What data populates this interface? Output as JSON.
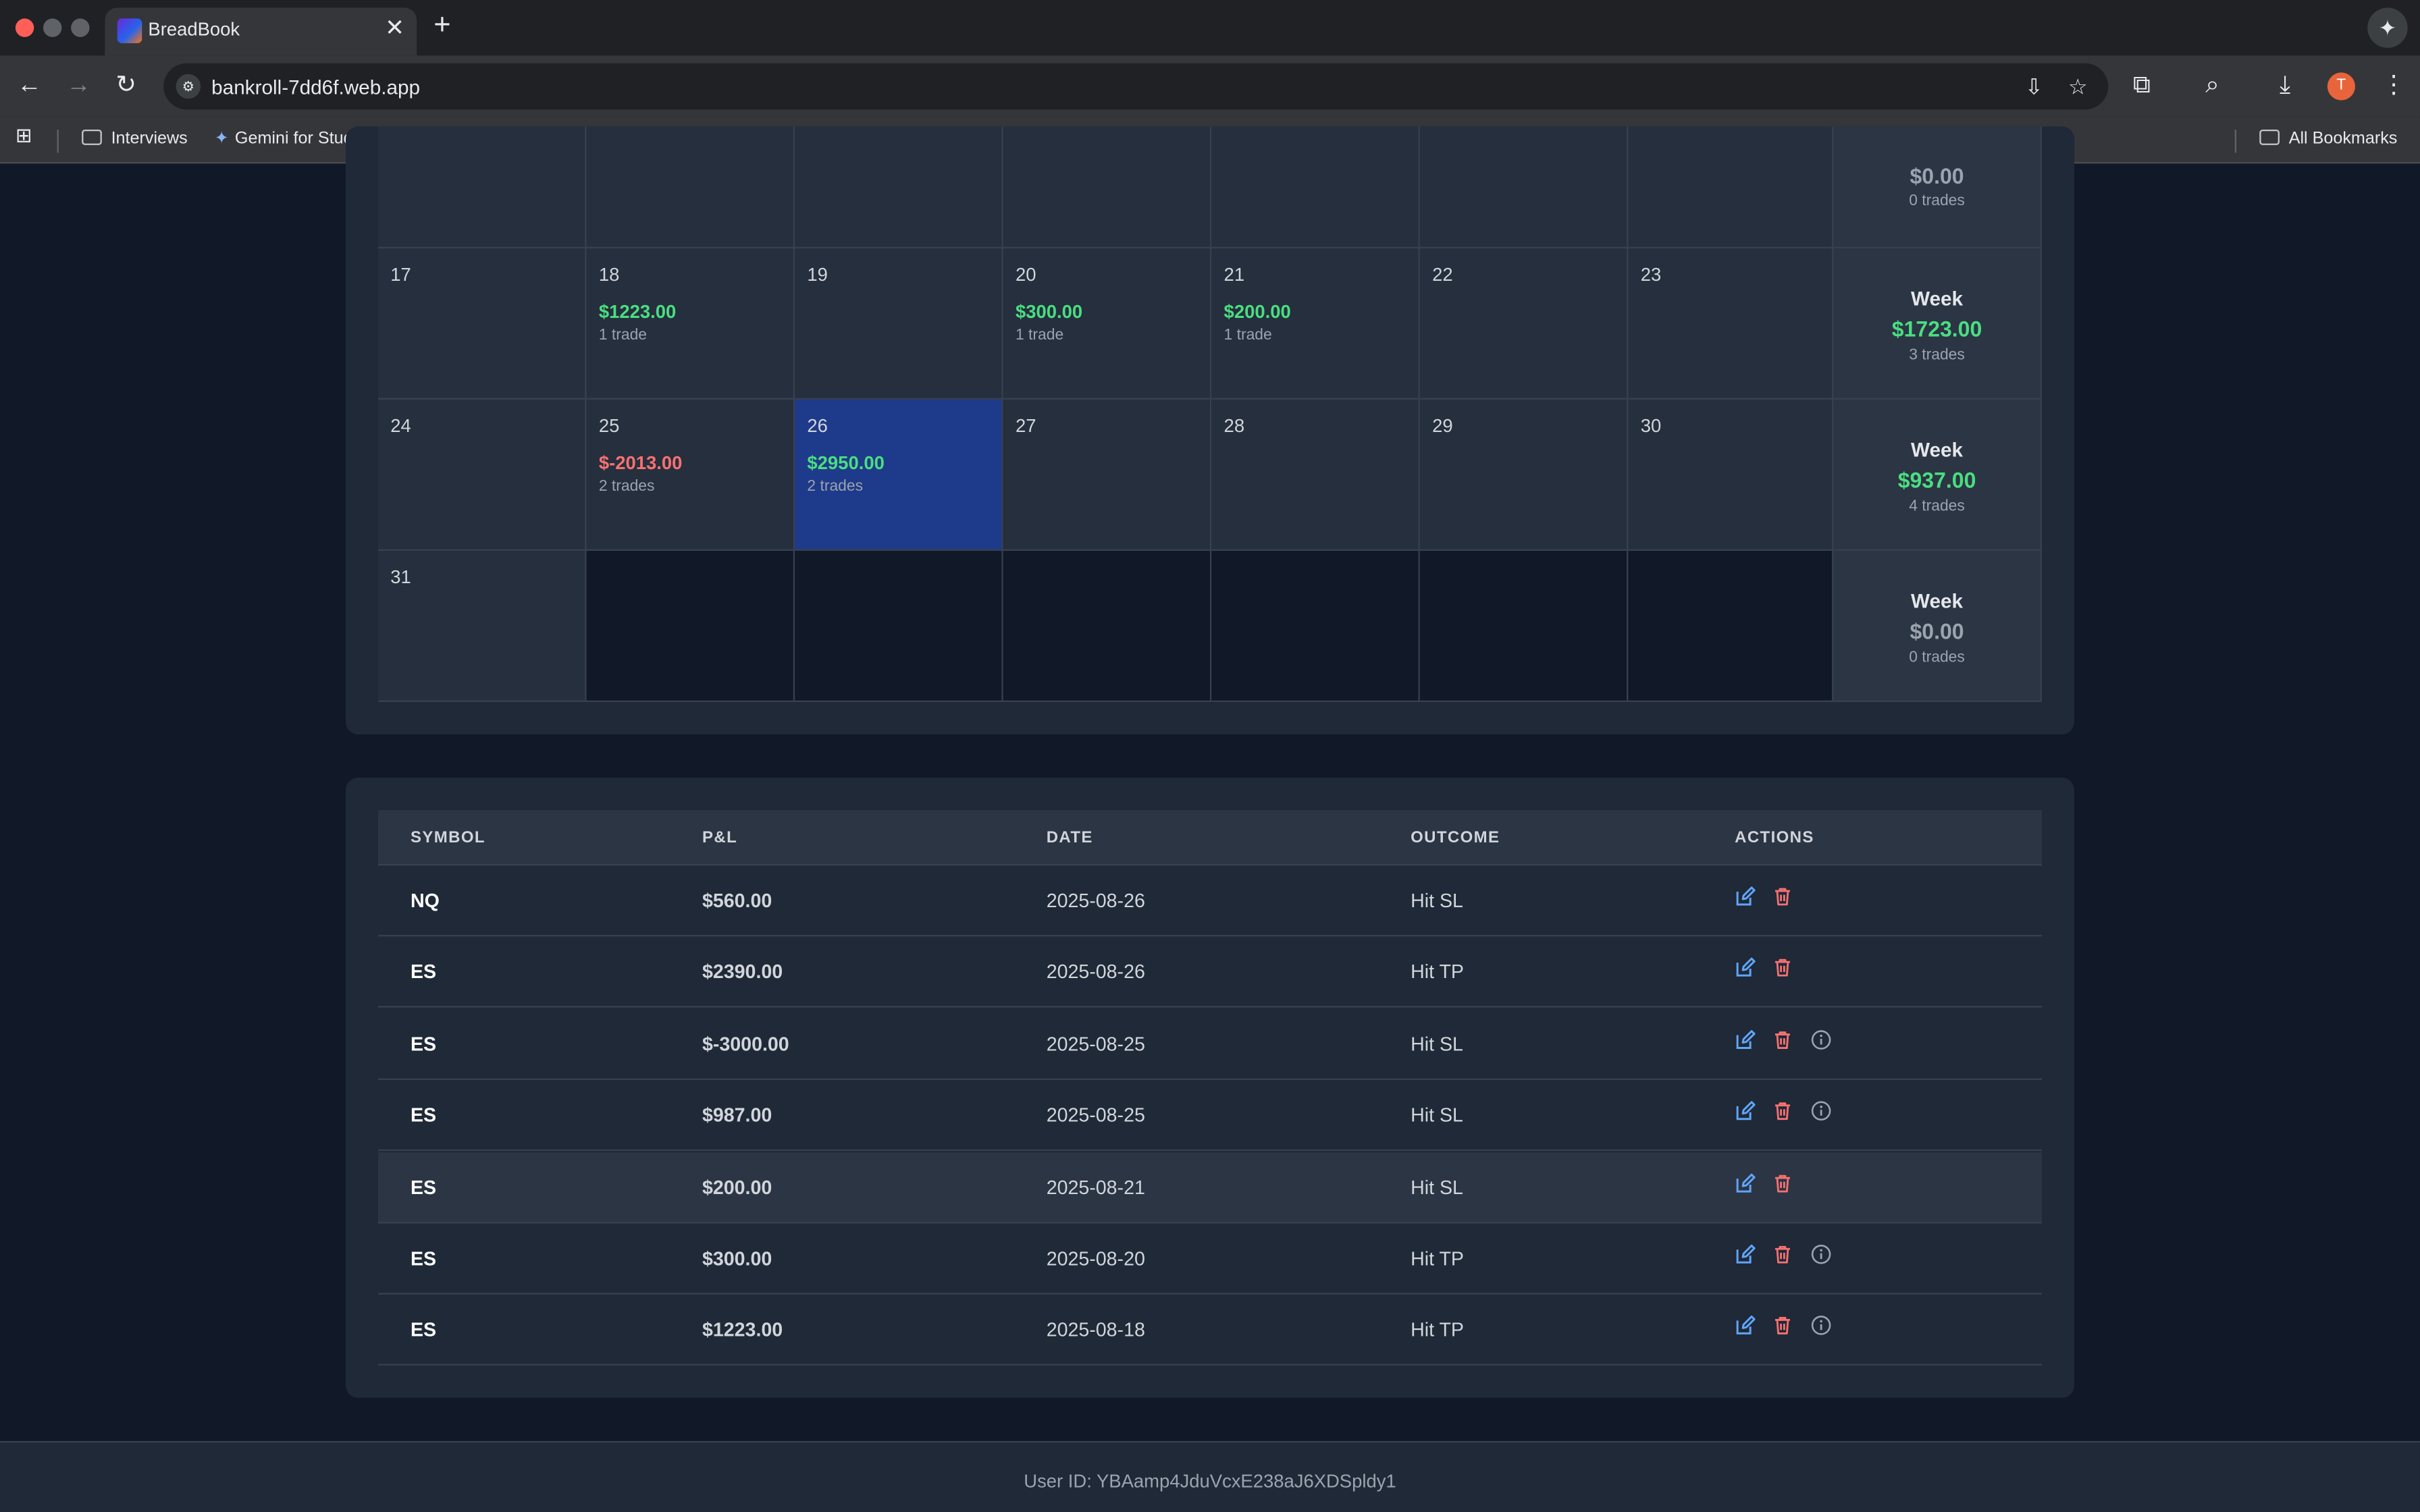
{
  "browser": {
    "tab_title": "BreadBook",
    "tab_close": "✕",
    "new_tab": "+",
    "url": "bankroll-7dd6f.web.app",
    "avatar_initial": "T",
    "bookmarks": [
      {
        "label": "Interviews",
        "icon": "folder-icon"
      },
      {
        "label": "Gemini for Student...",
        "icon": "gemini-icon"
      }
    ],
    "all_bookmarks": "All Bookmarks"
  },
  "calendar": {
    "top_week": {
      "pnl": "$0.00",
      "trades": "0 trades"
    },
    "rows": [
      {
        "days": [
          {
            "num": "17"
          },
          {
            "num": "18",
            "pnl": "$1223.00",
            "trades": "1 trade",
            "sign": "pos"
          },
          {
            "num": "19"
          },
          {
            "num": "20",
            "pnl": "$300.00",
            "trades": "1 trade",
            "sign": "pos"
          },
          {
            "num": "21",
            "pnl": "$200.00",
            "trades": "1 trade",
            "sign": "pos"
          },
          {
            "num": "22"
          },
          {
            "num": "23"
          }
        ],
        "week": {
          "label": "Week",
          "pnl": "$1723.00",
          "trades": "3 trades",
          "sign": "pos"
        }
      },
      {
        "days": [
          {
            "num": "24"
          },
          {
            "num": "25",
            "pnl": "$-2013.00",
            "trades": "2 trades",
            "sign": "neg"
          },
          {
            "num": "26",
            "pnl": "$2950.00",
            "trades": "2 trades",
            "sign": "pos",
            "selected": true
          },
          {
            "num": "27"
          },
          {
            "num": "28"
          },
          {
            "num": "29"
          },
          {
            "num": "30"
          }
        ],
        "week": {
          "label": "Week",
          "pnl": "$937.00",
          "trades": "4 trades",
          "sign": "pos"
        }
      },
      {
        "days": [
          {
            "num": "31"
          },
          {
            "num": "",
            "empty": true
          },
          {
            "num": "",
            "empty": true
          },
          {
            "num": "",
            "empty": true
          },
          {
            "num": "",
            "empty": true
          },
          {
            "num": "",
            "empty": true
          },
          {
            "num": "",
            "empty": true
          }
        ],
        "week": {
          "label": "Week",
          "pnl": "$0.00",
          "trades": "0 trades",
          "sign": "zero"
        }
      }
    ]
  },
  "trades": {
    "headers": {
      "symbol": "SYMBOL",
      "pnl": "P&L",
      "date": "DATE",
      "outcome": "OUTCOME",
      "actions": "ACTIONS"
    },
    "rows": [
      {
        "symbol": "NQ",
        "pnl": "$560.00",
        "sign": "pos",
        "date": "2025-08-26",
        "outcome": "Hit SL",
        "info": false
      },
      {
        "symbol": "ES",
        "pnl": "$2390.00",
        "sign": "pos",
        "date": "2025-08-26",
        "outcome": "Hit TP",
        "info": false
      },
      {
        "symbol": "ES",
        "pnl": "$-3000.00",
        "sign": "neg",
        "date": "2025-08-25",
        "outcome": "Hit SL",
        "info": true
      },
      {
        "symbol": "ES",
        "pnl": "$987.00",
        "sign": "pos",
        "date": "2025-08-25",
        "outcome": "Hit SL",
        "info": true
      },
      {
        "symbol": "ES",
        "pnl": "$200.00",
        "sign": "pos",
        "date": "2025-08-21",
        "outcome": "Hit SL",
        "info": false,
        "highlighted": true
      },
      {
        "symbol": "ES",
        "pnl": "$300.00",
        "sign": "pos",
        "date": "2025-08-20",
        "outcome": "Hit TP",
        "info": true
      },
      {
        "symbol": "ES",
        "pnl": "$1223.00",
        "sign": "pos",
        "date": "2025-08-18",
        "outcome": "Hit TP",
        "info": true
      }
    ]
  },
  "footer": {
    "user_id": "User ID: YBAamp4JduVcxE238aJ6XDSpldy1"
  },
  "colors": {
    "positive": "#4ade80",
    "negative": "#f87171",
    "edit": "#60a5fa",
    "delete": "#f87171",
    "info": "#9ca3af"
  }
}
